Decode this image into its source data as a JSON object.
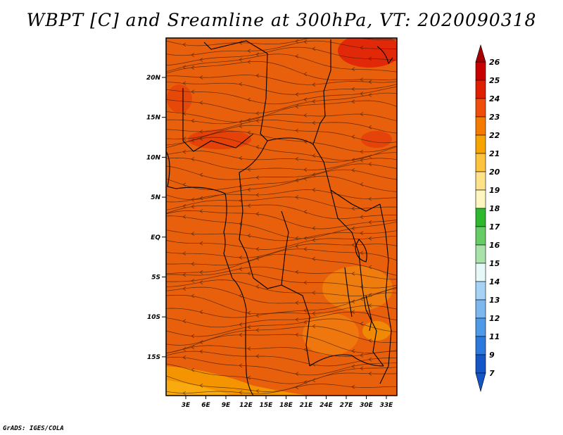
{
  "title": "WBPT [C] and Sreamline at 300hPa, VT: 2020090318",
  "credit": "GrADS: IGES/COLA",
  "map": {
    "lat_labels": [
      "20N",
      "15N",
      "10N",
      "5N",
      "EQ",
      "5S",
      "10S",
      "15S"
    ],
    "lon_labels": [
      "3E",
      "6E",
      "9E",
      "12E",
      "15E",
      "18E",
      "21E",
      "24E",
      "27E",
      "30E",
      "33E"
    ],
    "base_color": "#e85f0c"
  },
  "colorbar": {
    "levels": [
      "26",
      "25",
      "24",
      "23",
      "22",
      "21",
      "20",
      "19",
      "18",
      "17",
      "16",
      "15",
      "14",
      "13",
      "12",
      "11",
      "9",
      "7"
    ],
    "colors": [
      "#a50000",
      "#c80000",
      "#e01e00",
      "#f04d0a",
      "#f57a00",
      "#f8a400",
      "#fbc43c",
      "#fde28a",
      "#fdf6c0",
      "#2eb82e",
      "#66cc66",
      "#a8e2a8",
      "#e6f8f8",
      "#a6d2f5",
      "#7cb7ef",
      "#4e9ae8",
      "#2c78dc",
      "#1455c8"
    ]
  }
}
